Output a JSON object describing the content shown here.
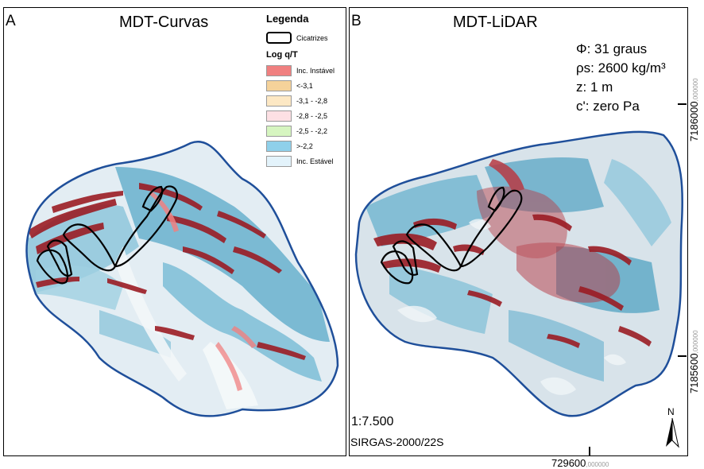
{
  "panel_a": {
    "letter": "A",
    "title": "MDT-Curvas"
  },
  "panel_b": {
    "letter": "B",
    "title": "MDT-LiDAR"
  },
  "legend": {
    "title": "Legenda",
    "scar_label": "Cicatrizes",
    "class_title": "Log q/T",
    "classes": [
      {
        "label": "Inc. Instável",
        "color": "#f08080"
      },
      {
        "label": "<-3,1",
        "color": "#f5d29a"
      },
      {
        "label": "-3,1 - -2,8",
        "color": "#fde8c4"
      },
      {
        "label": "-2,8 - -2,5",
        "color": "#fde0e4"
      },
      {
        "label": "-2,5 - -2,2",
        "color": "#d6f5c0"
      },
      {
        "label": ">-2,2",
        "color": "#8fd0ea"
      },
      {
        "label": "Inc. Estável",
        "color": "#e3f3fb"
      }
    ]
  },
  "parameters": {
    "phi": "Φ: 31 graus",
    "rho": "ρs: 2600 kg/m³",
    "z": "z: 1 m",
    "c": "c': zero Pa"
  },
  "scale": "1:7.500",
  "crs": "SIRGAS-2000/22S",
  "grid": {
    "northing_top": "7186000",
    "northing_top_dec": ",000000",
    "northing_bottom": "7185600",
    "northing_bottom_dec": ",000000",
    "easting": "729600",
    "easting_dec": ",000000"
  },
  "north_arrow_label": "N",
  "colors": {
    "outline": "#1f4f9a",
    "unstable_dark": "#9b1c24",
    "stable_blue": "#5aa6c4",
    "hillshade": "#dfe8ee"
  }
}
